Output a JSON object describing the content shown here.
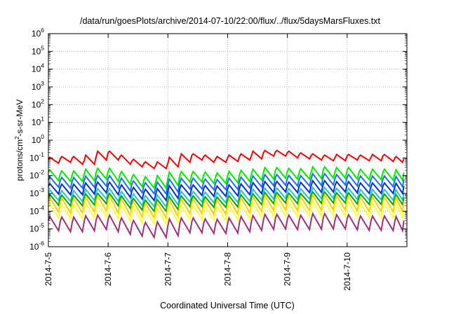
{
  "chart_data": {
    "type": "line",
    "title": "/data/run/goesPlots/archive/2014-07-10/22:00/flux/../flux/5daysMarsFluxes.txt",
    "xlabel": "Coordinated Universal Time (UTC)",
    "ylabel": {
      "prefix": "protons/cm",
      "superscript": "2",
      "suffix": "-s-sr-MeV"
    },
    "x_ticks": [
      "2014-7-5",
      "2014-7-6",
      "2014-7-7",
      "2014-7-8",
      "2014-7-9",
      "2014-7-10"
    ],
    "x_range": [
      "2014-7-5",
      "2014-7-11"
    ],
    "y_scale": "log",
    "y_ticks": [
      {
        "base": "10",
        "exp": "6"
      },
      {
        "base": "10",
        "exp": "5"
      },
      {
        "base": "10",
        "exp": "4"
      },
      {
        "base": "10",
        "exp": "3"
      },
      {
        "base": "10",
        "exp": "2"
      },
      {
        "base": "10",
        "exp": "1"
      },
      {
        "base": "10",
        "exp": "0"
      },
      {
        "base": "10",
        "exp": "-1"
      },
      {
        "base": "10",
        "exp": "-2"
      },
      {
        "base": "10",
        "exp": "-3"
      },
      {
        "base": "10",
        "exp": "-4"
      },
      {
        "base": "10",
        "exp": "-5"
      },
      {
        "base": "10",
        "exp": "-6"
      }
    ],
    "ylim": [
      1e-06,
      1000000.0
    ],
    "grid": true,
    "legend": "none",
    "sample_days": [
      0,
      0.2,
      0.4,
      0.6,
      0.8,
      1.0,
      1.2,
      1.4,
      1.6,
      1.8,
      2.0,
      2.2,
      2.4,
      2.6,
      2.8,
      3.0,
      3.2,
      3.4,
      3.6,
      3.8,
      4.0,
      4.2,
      4.4,
      4.6,
      4.8,
      5.0,
      5.2,
      5.4,
      5.6,
      5.8,
      5.95
    ],
    "series": [
      {
        "color": "#ff0000",
        "values": [
          0.08,
          0.09,
          0.1,
          0.07,
          0.12,
          0.2,
          0.12,
          0.07,
          0.05,
          0.04,
          0.05,
          0.09,
          0.14,
          0.12,
          0.09,
          0.1,
          0.12,
          0.14,
          0.2,
          0.22,
          0.2,
          0.16,
          0.14,
          0.12,
          0.11,
          0.13,
          0.12,
          0.11,
          0.13,
          0.1,
          0.09
        ]
      },
      {
        "color": "#00ee00",
        "values": [
          0.015,
          0.013,
          0.012,
          0.013,
          0.016,
          0.018,
          0.012,
          0.008,
          0.006,
          0.005,
          0.007,
          0.011,
          0.012,
          0.011,
          0.009,
          0.01,
          0.012,
          0.014,
          0.016,
          0.02,
          0.018,
          0.016,
          0.017,
          0.022,
          0.018,
          0.02,
          0.016,
          0.015,
          0.016,
          0.014,
          0.015
        ]
      },
      {
        "color": "#1f6cff",
        "values": [
          0.006,
          0.0055,
          0.005,
          0.0055,
          0.0065,
          0.007,
          0.005,
          0.0035,
          0.0028,
          0.0024,
          0.003,
          0.0045,
          0.005,
          0.0045,
          0.004,
          0.0042,
          0.005,
          0.0058,
          0.0068,
          0.008,
          0.0072,
          0.0066,
          0.007,
          0.009,
          0.0075,
          0.008,
          0.0066,
          0.0062,
          0.0066,
          0.006,
          0.0062
        ]
      },
      {
        "color": "#0033cc",
        "values": [
          0.0025,
          0.0023,
          0.0021,
          0.0023,
          0.0027,
          0.003,
          0.0021,
          0.0015,
          0.0012,
          0.001,
          0.0013,
          0.0019,
          0.0021,
          0.0019,
          0.0017,
          0.0018,
          0.0021,
          0.0024,
          0.0028,
          0.0033,
          0.003,
          0.0028,
          0.0029,
          0.0036,
          0.003,
          0.0032,
          0.0027,
          0.0025,
          0.0027,
          0.0025,
          0.0026
        ]
      },
      {
        "color": "#20c8c8",
        "values": [
          0.0011,
          0.001,
          0.0009,
          0.001,
          0.0012,
          0.0013,
          0.0009,
          0.00065,
          0.00052,
          0.00045,
          0.00056,
          0.00082,
          0.0009,
          0.00082,
          0.00074,
          0.00078,
          0.0009,
          0.00105,
          0.0012,
          0.0014,
          0.0013,
          0.0012,
          0.00125,
          0.0015,
          0.0013,
          0.00135,
          0.00115,
          0.00108,
          0.00115,
          0.00105,
          0.0011
        ]
      },
      {
        "color": "#00aa00",
        "values": [
          0.0006,
          0.00055,
          0.0005,
          0.00055,
          0.00065,
          0.0007,
          0.0005,
          0.00036,
          0.00029,
          0.00025,
          0.00031,
          0.00045,
          0.0005,
          0.00045,
          0.00041,
          0.00043,
          0.0005,
          0.00058,
          0.00066,
          0.00078,
          0.00072,
          0.00066,
          0.00069,
          0.00085,
          0.00072,
          0.00075,
          0.00064,
          0.0006,
          0.00064,
          0.00058,
          0.0006
        ]
      },
      {
        "color": "#ffcc00",
        "values": [
          0.00035,
          0.00032,
          0.00029,
          0.00032,
          0.00038,
          0.00042,
          0.00029,
          0.00021,
          0.00017,
          0.00015,
          0.00018,
          0.00026,
          0.00029,
          0.00026,
          0.00024,
          0.00025,
          0.00029,
          0.00034,
          0.00039,
          0.00046,
          0.00042,
          0.00039,
          0.0004,
          0.0005,
          0.00042,
          0.00044,
          0.00037,
          0.00035,
          0.00037,
          0.00034,
          0.00035
        ]
      },
      {
        "color": "#ffff33",
        "values": [
          0.00016,
          0.00015,
          0.00013,
          0.00015,
          0.00017,
          0.00019,
          0.00013,
          0.0001,
          8e-05,
          7e-05,
          8.5e-05,
          0.00012,
          0.00013,
          0.00012,
          0.00011,
          0.000115,
          0.00013,
          0.000155,
          0.00018,
          0.00021,
          0.00019,
          0.00018,
          0.000185,
          0.00023,
          0.00019,
          0.0002,
          0.00017,
          0.00016,
          0.00017,
          0.000155,
          0.00016
        ]
      },
      {
        "color": "#a0307a",
        "values": [
          3e-05,
          2.8e-05,
          2.5e-05,
          2.8e-05,
          3.3e-05,
          3.6e-05,
          2.5e-05,
          1.8e-05,
          1.4e-05,
          1.2e-05,
          1.5e-05,
          2.2e-05,
          2.5e-05,
          2.2e-05,
          2e-05,
          2.1e-05,
          2.5e-05,
          3e-05,
          3.4e-05,
          4e-05,
          3.6e-05,
          3.3e-05,
          3.5e-05,
          4.4e-05,
          3.6e-05,
          3.8e-05,
          3.2e-05,
          3e-05,
          3.2e-05,
          2.9e-05,
          3e-05
        ]
      }
    ]
  }
}
